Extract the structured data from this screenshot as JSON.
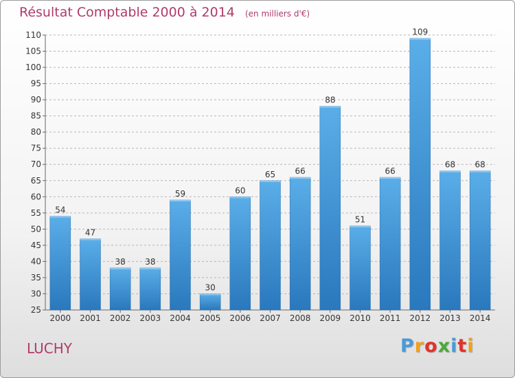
{
  "chart_data": {
    "type": "bar",
    "title": "Résultat Comptable 2000 à 2014",
    "subtitle": "(en milliers d'€)",
    "categories": [
      "2000",
      "2001",
      "2002",
      "2003",
      "2004",
      "2005",
      "2006",
      "2007",
      "2008",
      "2009",
      "2010",
      "2011",
      "2012",
      "2013",
      "2014"
    ],
    "values": [
      54,
      47,
      38,
      38,
      59,
      30,
      60,
      65,
      66,
      88,
      51,
      66,
      109,
      68,
      68
    ],
    "ylim": [
      25,
      110
    ],
    "yticks": [
      25,
      30,
      35,
      40,
      45,
      50,
      55,
      60,
      65,
      70,
      75,
      80,
      85,
      90,
      95,
      100,
      105,
      110
    ],
    "grid": "horizontal dashed",
    "xlabel": "",
    "ylabel": "",
    "bar_color": "#3a93d6"
  },
  "footer": {
    "commune": "LUCHY",
    "brand": "Proxiti"
  },
  "colors": {
    "title": "#b03a6a",
    "brand_letters": [
      "#4a9ad6",
      "#f0a020",
      "#e0332a",
      "#4aaa3a",
      "#4a9ad6",
      "#e0332a",
      "#f0a020"
    ]
  }
}
